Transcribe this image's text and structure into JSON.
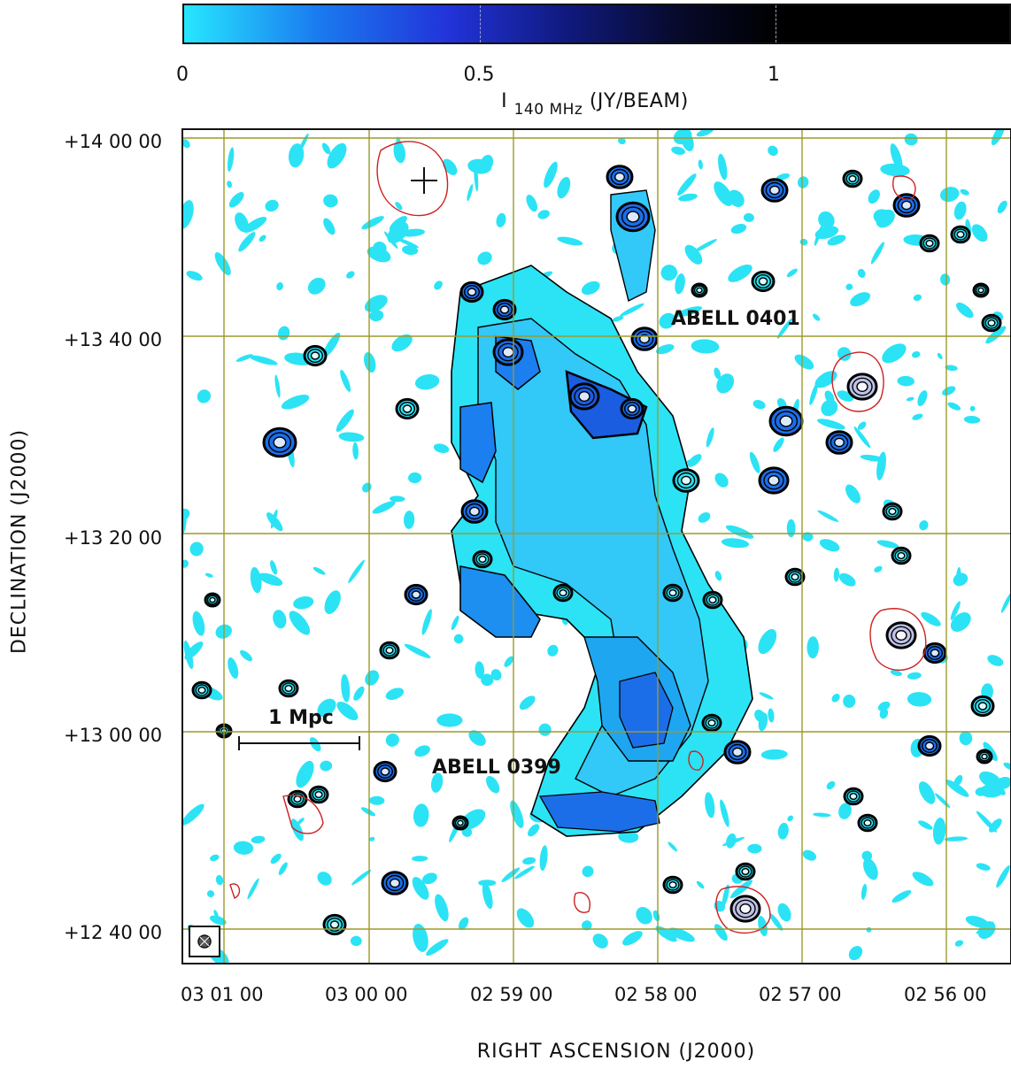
{
  "colorbar": {
    "ticks": [
      "0",
      "0.5",
      "1"
    ],
    "title_main": "I",
    "title_sub": "140 MHz",
    "title_unit": "(JY/BEAM)"
  },
  "axes": {
    "xlabel": "RIGHT ASCENSION (J2000)",
    "ylabel": "DECLINATION (J2000)",
    "x_ticks": [
      "03 01 00",
      "03 00 00",
      "02 59 00",
      "02 58 00",
      "02 57 00",
      "02 56 00"
    ],
    "y_ticks": [
      "+14 00 00",
      "+13 40 00",
      "+13 20 00",
      "+13 00 00",
      "+12 40 00"
    ]
  },
  "annotations": {
    "cluster_north": "ABELL 0401",
    "cluster_south": "ABELL 0399",
    "scale_bar": "1 Mpc"
  },
  "colors": {
    "grid": "#9c9a2a",
    "positive_contour": "#000000",
    "negative_contour": "#cc2222",
    "diffuse_fill": "#2be3f5",
    "bright_fill": "#1c6ee8"
  },
  "icons": {
    "beam": "beam-ellipse-icon",
    "marker": "cross-marker-icon"
  }
}
